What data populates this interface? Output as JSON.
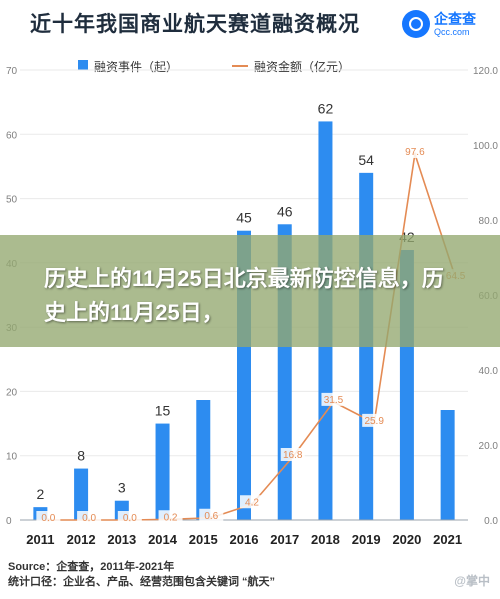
{
  "header": {
    "title": "近十年我国商业航天赛道融资概况",
    "logo_name": "企查查",
    "logo_domain": "Qcc.com"
  },
  "legend": {
    "bars_label": "融资事件（起）",
    "line_label": "融资金额（亿元）"
  },
  "banner": {
    "text": "历史上的11月25日北京最新防控信息，历史上的11月25日，"
  },
  "footer": {
    "source": "Source：企查查，2011年-2021年",
    "caliber": "统计口径：企业名、产品、经营范围包含关键词 “航天”",
    "watermark": "@掌中"
  },
  "colors": {
    "bar": "#2d8cf0",
    "line": "#e48b54",
    "bar_label": "#333333",
    "line_label": "#e48b54",
    "grid": "#eaeaea",
    "axis_text": "#7f7f7f"
  },
  "chart_data": {
    "type": "bar",
    "title": "近十年我国商业航天赛道融资概况",
    "categories": [
      "2011",
      "2012",
      "2013",
      "2014",
      "2015",
      "2016",
      "2017",
      "2018",
      "2019",
      "2020",
      "2021"
    ],
    "series": [
      {
        "name": "融资事件（起）",
        "type": "bar",
        "axis": "left",
        "values": [
          2,
          8,
          3,
          15,
          null,
          45,
          46,
          62,
          54,
          42,
          null
        ],
        "labels": [
          "2",
          "8",
          "3",
          "15",
          "",
          "45",
          "46",
          "62",
          "54",
          "42",
          ""
        ]
      },
      {
        "name": "融资金额（亿元）",
        "type": "line",
        "axis": "right",
        "values": [
          0.0,
          0.0,
          0.0,
          0.2,
          0.6,
          4.2,
          16.8,
          31.5,
          25.9,
          97.6,
          64.5
        ],
        "labels": [
          "0.0",
          "0.0",
          "0.0",
          "0.2",
          "0.6",
          "4.2",
          "16.8",
          "31.5",
          "25.9",
          "97.6",
          "64.5"
        ]
      }
    ],
    "y_left": {
      "ticks": [
        "0",
        "10",
        "20",
        "30",
        "40",
        "50",
        "60",
        "70"
      ],
      "range": [
        0,
        70
      ]
    },
    "y_right": {
      "ticks": [
        "0.0",
        "20.0",
        "40.0",
        "60.0",
        "80.0",
        "100.0",
        "120.0"
      ],
      "range": [
        0,
        120
      ]
    },
    "grid": true,
    "legend_position": "top"
  }
}
